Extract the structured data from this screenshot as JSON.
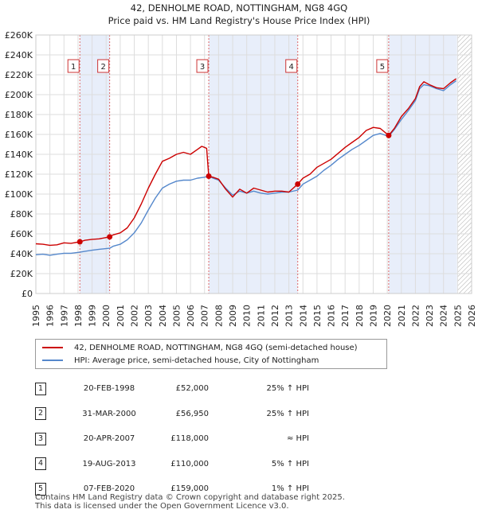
{
  "chart_data": {
    "type": "line",
    "title": "42, DENHOLME ROAD, NOTTINGHAM, NG8 4GQ",
    "subtitle": "Price paid vs. HM Land Registry's House Price Index (HPI)",
    "xlim": [
      1995,
      2026
    ],
    "ylim": [
      0,
      260000
    ],
    "x_ticks": [
      "1995",
      "1996",
      "1997",
      "1998",
      "1999",
      "2000",
      "2001",
      "2002",
      "2003",
      "2004",
      "2005",
      "2006",
      "2007",
      "2008",
      "2009",
      "2010",
      "2011",
      "2012",
      "2013",
      "2014",
      "2015",
      "2016",
      "2017",
      "2018",
      "2019",
      "2020",
      "2021",
      "2022",
      "2023",
      "2024",
      "2025",
      "2026"
    ],
    "y_ticks": [
      {
        "value": 0,
        "label": "£0"
      },
      {
        "value": 20000,
        "label": "£20K"
      },
      {
        "value": 40000,
        "label": "£40K"
      },
      {
        "value": 60000,
        "label": "£60K"
      },
      {
        "value": 80000,
        "label": "£80K"
      },
      {
        "value": 100000,
        "label": "£100K"
      },
      {
        "value": 120000,
        "label": "£120K"
      },
      {
        "value": 140000,
        "label": "£140K"
      },
      {
        "value": 160000,
        "label": "£160K"
      },
      {
        "value": 180000,
        "label": "£180K"
      },
      {
        "value": 200000,
        "label": "£200K"
      },
      {
        "value": 220000,
        "label": "£220K"
      },
      {
        "value": 240000,
        "label": "£240K"
      },
      {
        "value": 260000,
        "label": "£260K"
      }
    ],
    "shaded_ranges": [
      [
        1998.13,
        2000.25
      ],
      [
        2007.3,
        2013.63
      ],
      [
        2020.1,
        2024.95
      ]
    ],
    "future_hatch_from": 2025.0,
    "series": [
      {
        "name": "42, DENHOLME ROAD, NOTTINGHAM, NG8 4GQ (semi-detached house)",
        "color": "#cc0000",
        "x": [
          1995,
          1995.5,
          1996,
          1996.5,
          1997,
          1997.5,
          1998.13,
          1998.5,
          1999,
          1999.5,
          2000.25,
          2000.5,
          2001,
          2001.5,
          2002,
          2002.5,
          2003,
          2003.5,
          2004,
          2004.5,
          2005,
          2005.5,
          2006,
          2006.5,
          2006.8,
          2007.0,
          2007.15,
          2007.3,
          2007.6,
          2008,
          2008.5,
          2009,
          2009.5,
          2010,
          2010.5,
          2011,
          2011.5,
          2012,
          2012.5,
          2013,
          2013.63,
          2014,
          2014.5,
          2015,
          2015.5,
          2016,
          2016.5,
          2017,
          2017.5,
          2018,
          2018.5,
          2019,
          2019.5,
          2020.1,
          2020.5,
          2021,
          2021.5,
          2022,
          2022.3,
          2022.6,
          2023,
          2023.5,
          2024,
          2024.5,
          2024.9
        ],
        "y": [
          50000,
          49500,
          48500,
          49000,
          51000,
          50500,
          52000,
          53500,
          54500,
          55000,
          56950,
          59000,
          61000,
          66000,
          76000,
          90000,
          106000,
          120000,
          133000,
          136000,
          140000,
          142000,
          140000,
          145000,
          148000,
          147000,
          146000,
          118000,
          117000,
          115000,
          105000,
          97000,
          105000,
          101000,
          106000,
          104000,
          102000,
          103000,
          103000,
          102000,
          110000,
          116000,
          120000,
          127000,
          131000,
          135000,
          141000,
          147000,
          152000,
          157000,
          164000,
          167000,
          166000,
          159000,
          166000,
          178000,
          186000,
          196000,
          208000,
          213000,
          210000,
          207000,
          206000,
          212000,
          216000
        ]
      },
      {
        "name": "HPI: Average price, semi-detached house, City of Nottingham",
        "color": "#5588cc",
        "x": [
          1995,
          1995.5,
          1996,
          1996.5,
          1997,
          1997.5,
          1998.13,
          1998.5,
          1999,
          1999.5,
          2000.25,
          2000.5,
          2001,
          2001.5,
          2002,
          2002.5,
          2003,
          2003.5,
          2004,
          2004.5,
          2005,
          2005.5,
          2006,
          2006.5,
          2007,
          2007.3,
          2007.6,
          2008,
          2008.5,
          2009,
          2009.5,
          2010,
          2010.5,
          2011,
          2011.5,
          2012,
          2012.5,
          2013,
          2013.63,
          2014,
          2014.5,
          2015,
          2015.5,
          2016,
          2016.5,
          2017,
          2017.5,
          2018,
          2018.5,
          2019,
          2019.5,
          2020.1,
          2020.5,
          2021,
          2021.5,
          2022,
          2022.3,
          2022.6,
          2023,
          2023.5,
          2024,
          2024.5,
          2024.9
        ],
        "y": [
          39000,
          39500,
          38500,
          39500,
          40500,
          40500,
          41500,
          42500,
          43500,
          44500,
          45500,
          47500,
          49500,
          54000,
          61000,
          71000,
          84000,
          96000,
          106000,
          110000,
          113000,
          114000,
          114000,
          116000,
          117000,
          118000,
          116000,
          114000,
          106000,
          99000,
          103000,
          101000,
          103000,
          101000,
          100000,
          101000,
          102000,
          102000,
          104000,
          110000,
          114000,
          118000,
          124000,
          129000,
          135000,
          140000,
          145000,
          149000,
          154000,
          159000,
          161000,
          158000,
          165000,
          175000,
          184000,
          194000,
          206000,
          210000,
          209000,
          206000,
          204000,
          210000,
          214000
        ]
      }
    ],
    "sales": [
      {
        "label": "1",
        "x": 1998.13,
        "y": 52000
      },
      {
        "label": "2",
        "x": 2000.25,
        "y": 56950
      },
      {
        "label": "3",
        "x": 2007.3,
        "y": 118000
      },
      {
        "label": "4",
        "x": 2013.63,
        "y": 110000
      },
      {
        "label": "5",
        "x": 2020.1,
        "y": 159000
      }
    ]
  },
  "legend": {
    "property": "42, DENHOLME ROAD, NOTTINGHAM, NG8 4GQ (semi-detached house)",
    "hpi": "HPI: Average price, semi-detached house, City of Nottingham"
  },
  "table": [
    {
      "num": "1",
      "date": "20-FEB-1998",
      "price": "£52,000",
      "hpi": "25% ↑ HPI"
    },
    {
      "num": "2",
      "date": "31-MAR-2000",
      "price": "£56,950",
      "hpi": "25% ↑ HPI"
    },
    {
      "num": "3",
      "date": "20-APR-2007",
      "price": "£118,000",
      "hpi": "≈ HPI"
    },
    {
      "num": "4",
      "date": "19-AUG-2013",
      "price": "£110,000",
      "hpi": "5% ↑ HPI"
    },
    {
      "num": "5",
      "date": "07-FEB-2020",
      "price": "£159,000",
      "hpi": "1% ↑ HPI"
    }
  ],
  "footer": {
    "line1": "Contains HM Land Registry data © Crown copyright and database right 2025.",
    "line2": "This data is licensed under the Open Government Licence v3.0."
  },
  "colors": {
    "property": "#cc0000",
    "hpi": "#5588cc",
    "shade": "#e8eefa",
    "grid": "#dddddd"
  }
}
